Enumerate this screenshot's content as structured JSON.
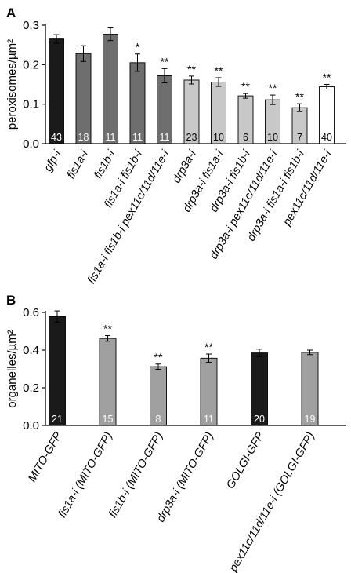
{
  "chart_data": [
    {
      "panel": "A",
      "type": "bar",
      "ylabel": "peroxisomes/µm²",
      "ylim": [
        0,
        0.3
      ],
      "yticks": [
        "0.0",
        "0.1",
        "0.2",
        "0.3"
      ],
      "categories": [
        "gfp-i",
        "fis1a-i",
        "fis1b-i",
        "fis1a-i fis1b-i",
        "fis1a-i fis1b-i pex11c/11d/11e-i",
        "drp3a-i",
        "drp3a-i fis1a-i",
        "drp3a-i fis1b-i",
        "drp3a-i pex11c/11d/11e-i",
        "drp3a-i fis1a-i fis1b-i",
        "pex11c/11d/11e-i"
      ],
      "values": [
        0.265,
        0.228,
        0.277,
        0.205,
        0.172,
        0.161,
        0.156,
        0.121,
        0.111,
        0.091,
        0.144
      ],
      "errors": [
        0.011,
        0.02,
        0.016,
        0.022,
        0.018,
        0.01,
        0.011,
        0.006,
        0.012,
        0.01,
        0.006
      ],
      "n": [
        "43",
        "18",
        "11",
        "11",
        "11",
        "23",
        "10",
        "6",
        "10",
        "7",
        "40"
      ],
      "significance": [
        "",
        "",
        "",
        "*",
        "**",
        "**",
        "**",
        "**",
        "**",
        "**",
        "**"
      ],
      "colors": [
        "#1a1a1a",
        "#6e6e6e",
        "#6e6e6e",
        "#6e6e6e",
        "#6e6e6e",
        "#c8c8c8",
        "#c8c8c8",
        "#c8c8c8",
        "#c8c8c8",
        "#c8c8c8",
        "#ffffff"
      ]
    },
    {
      "panel": "B",
      "type": "bar",
      "ylabel": "organelles/µm²",
      "ylim": [
        0,
        0.6
      ],
      "yticks": [
        "0.0",
        "0.2",
        "0.4",
        "0.6"
      ],
      "categories": [
        "MITO-GFP",
        "fis1a-i (MITO-GFP)",
        "fis1b-i (MITO-GFP)",
        "drp3a-i (MITO-GFP)",
        "GOLGI-GFP",
        "pex11c/11d/11e-i (GOLGI-GFP)"
      ],
      "values": [
        0.578,
        0.462,
        0.312,
        0.357,
        0.385,
        0.388
      ],
      "errors": [
        0.03,
        0.015,
        0.014,
        0.022,
        0.02,
        0.012
      ],
      "n": [
        "21",
        "15",
        "8",
        "11",
        "20",
        "19"
      ],
      "significance": [
        "",
        "**",
        "**",
        "**",
        "",
        ""
      ],
      "colors": [
        "#1a1a1a",
        "#a0a0a0",
        "#a0a0a0",
        "#a0a0a0",
        "#1a1a1a",
        "#a0a0a0"
      ]
    }
  ]
}
